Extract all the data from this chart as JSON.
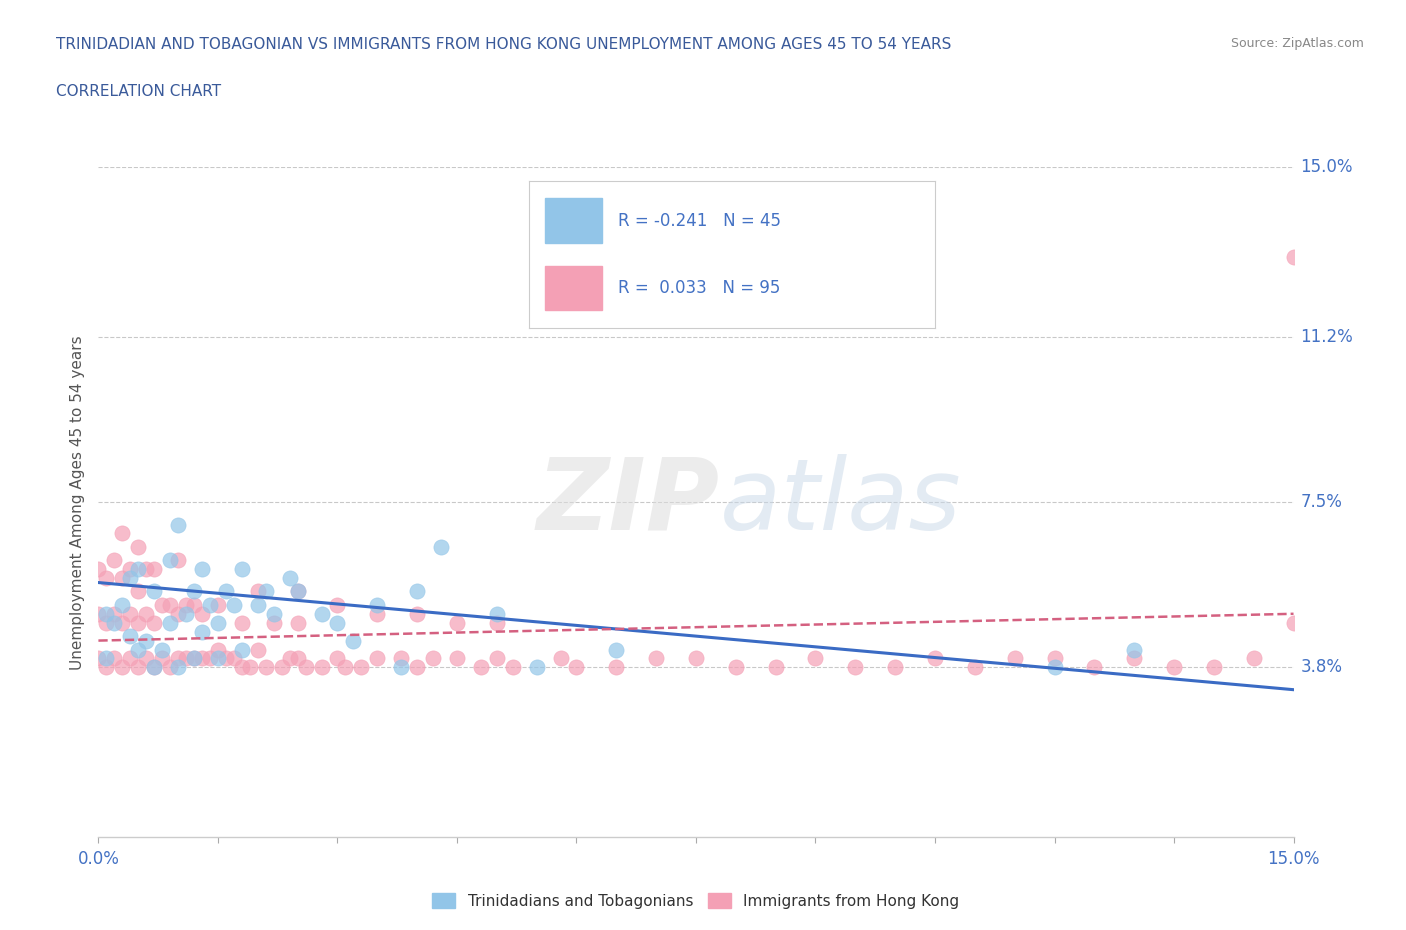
{
  "title_line1": "TRINIDADIAN AND TOBAGONIAN VS IMMIGRANTS FROM HONG KONG UNEMPLOYMENT AMONG AGES 45 TO 54 YEARS",
  "title_line2": "CORRELATION CHART",
  "source_text": "Source: ZipAtlas.com",
  "ylabel": "Unemployment Among Ages 45 to 54 years",
  "xmin": 0.0,
  "xmax": 0.15,
  "ymin": 0.0,
  "ymax": 0.15,
  "ytick_vals": [
    0.0,
    0.038,
    0.075,
    0.112,
    0.15
  ],
  "ytick_labels": [
    "",
    "3.8%",
    "7.5%",
    "11.2%",
    "15.0%"
  ],
  "xtick_vals": [
    0.0,
    0.015,
    0.03,
    0.045,
    0.06,
    0.075,
    0.09,
    0.105,
    0.12,
    0.135,
    0.15
  ],
  "xtick_labels": [
    "0.0%",
    "",
    "",
    "",
    "",
    "",
    "",
    "",
    "",
    "",
    "15.0%"
  ],
  "legend_label1": "Trinidadians and Tobagonians",
  "legend_label2": "Immigrants from Hong Kong",
  "R1": -0.241,
  "N1": 45,
  "R2": 0.033,
  "N2": 95,
  "color_blue": "#92C5E8",
  "color_pink": "#F4A0B5",
  "color_line_blue": "#3A6BC4",
  "color_line_pink": "#D46080",
  "color_grid": "#BBBBBB",
  "color_title": "#3A5A9A",
  "color_tick": "#4472C4",
  "blue_x": [
    0.001,
    0.001,
    0.002,
    0.003,
    0.004,
    0.004,
    0.005,
    0.005,
    0.006,
    0.007,
    0.007,
    0.008,
    0.009,
    0.009,
    0.01,
    0.01,
    0.011,
    0.012,
    0.012,
    0.013,
    0.013,
    0.014,
    0.015,
    0.015,
    0.016,
    0.017,
    0.018,
    0.018,
    0.02,
    0.021,
    0.022,
    0.024,
    0.025,
    0.028,
    0.03,
    0.032,
    0.035,
    0.038,
    0.04,
    0.043,
    0.05,
    0.055,
    0.065,
    0.12,
    0.13
  ],
  "blue_y": [
    0.04,
    0.05,
    0.048,
    0.052,
    0.045,
    0.058,
    0.042,
    0.06,
    0.044,
    0.038,
    0.055,
    0.042,
    0.048,
    0.062,
    0.038,
    0.07,
    0.05,
    0.04,
    0.055,
    0.046,
    0.06,
    0.052,
    0.04,
    0.048,
    0.055,
    0.052,
    0.042,
    0.06,
    0.052,
    0.055,
    0.05,
    0.058,
    0.055,
    0.05,
    0.048,
    0.044,
    0.052,
    0.038,
    0.055,
    0.065,
    0.05,
    0.038,
    0.042,
    0.038,
    0.042
  ],
  "pink_x": [
    0.0,
    0.0,
    0.0,
    0.001,
    0.001,
    0.001,
    0.002,
    0.002,
    0.002,
    0.003,
    0.003,
    0.003,
    0.003,
    0.004,
    0.004,
    0.004,
    0.005,
    0.005,
    0.005,
    0.005,
    0.006,
    0.006,
    0.006,
    0.007,
    0.007,
    0.007,
    0.008,
    0.008,
    0.009,
    0.009,
    0.01,
    0.01,
    0.01,
    0.011,
    0.011,
    0.012,
    0.012,
    0.013,
    0.013,
    0.014,
    0.015,
    0.015,
    0.016,
    0.017,
    0.018,
    0.018,
    0.019,
    0.02,
    0.021,
    0.022,
    0.023,
    0.024,
    0.025,
    0.025,
    0.026,
    0.028,
    0.03,
    0.031,
    0.033,
    0.035,
    0.038,
    0.04,
    0.042,
    0.045,
    0.048,
    0.05,
    0.052,
    0.058,
    0.06,
    0.065,
    0.07,
    0.075,
    0.08,
    0.085,
    0.09,
    0.095,
    0.1,
    0.105,
    0.11,
    0.115,
    0.12,
    0.125,
    0.13,
    0.135,
    0.14,
    0.145,
    0.15,
    0.02,
    0.025,
    0.03,
    0.035,
    0.04,
    0.045,
    0.05,
    0.15
  ],
  "pink_y": [
    0.04,
    0.05,
    0.06,
    0.038,
    0.048,
    0.058,
    0.04,
    0.05,
    0.062,
    0.038,
    0.048,
    0.058,
    0.068,
    0.04,
    0.05,
    0.06,
    0.038,
    0.048,
    0.055,
    0.065,
    0.04,
    0.05,
    0.06,
    0.038,
    0.048,
    0.06,
    0.04,
    0.052,
    0.038,
    0.052,
    0.04,
    0.05,
    0.062,
    0.04,
    0.052,
    0.04,
    0.052,
    0.04,
    0.05,
    0.04,
    0.042,
    0.052,
    0.04,
    0.04,
    0.038,
    0.048,
    0.038,
    0.042,
    0.038,
    0.048,
    0.038,
    0.04,
    0.04,
    0.048,
    0.038,
    0.038,
    0.04,
    0.038,
    0.038,
    0.04,
    0.04,
    0.038,
    0.04,
    0.04,
    0.038,
    0.04,
    0.038,
    0.04,
    0.038,
    0.038,
    0.04,
    0.04,
    0.038,
    0.038,
    0.04,
    0.038,
    0.038,
    0.04,
    0.038,
    0.04,
    0.04,
    0.038,
    0.04,
    0.038,
    0.038,
    0.04,
    0.13,
    0.055,
    0.055,
    0.052,
    0.05,
    0.05,
    0.048,
    0.048,
    0.048
  ],
  "blue_trend_x": [
    0.0,
    0.15
  ],
  "blue_trend_y": [
    0.057,
    0.033
  ],
  "pink_trend_x": [
    0.0,
    0.15
  ],
  "pink_trend_y": [
    0.044,
    0.05
  ]
}
